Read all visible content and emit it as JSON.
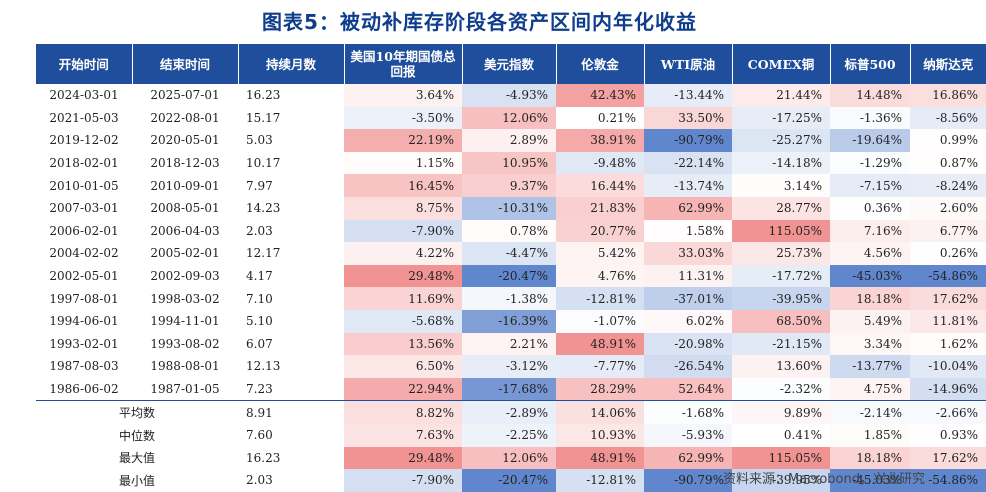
{
  "title": "图表5：被动补库存阶段各资产区间内年化收益",
  "headers": [
    "开始时间",
    "结束时间",
    "持续月数",
    "美国10年期国债总回报",
    "美元指数",
    "伦敦金",
    "WTI原油",
    "COMEX铜",
    "标普500",
    "纳斯达克"
  ],
  "rows": [
    [
      "2024-03-01",
      "2025-07-01",
      "16.23",
      "3.64%",
      "-4.93%",
      "42.43%",
      "-13.44%",
      "21.44%",
      "14.48%",
      "16.86%"
    ],
    [
      "2021-05-03",
      "2022-08-01",
      "15.17",
      "-3.50%",
      "12.06%",
      "0.21%",
      "33.50%",
      "-17.25%",
      "-1.36%",
      "-8.56%"
    ],
    [
      "2019-12-02",
      "2020-05-01",
      "5.03",
      "22.19%",
      "2.89%",
      "38.91%",
      "-90.79%",
      "-25.27%",
      "-19.64%",
      "0.99%"
    ],
    [
      "2018-02-01",
      "2018-12-03",
      "10.17",
      "1.15%",
      "10.95%",
      "-9.48%",
      "-22.14%",
      "-14.18%",
      "-1.29%",
      "0.87%"
    ],
    [
      "2010-01-05",
      "2010-09-01",
      "7.97",
      "16.45%",
      "9.37%",
      "16.44%",
      "-13.74%",
      "3.14%",
      "-7.15%",
      "-8.24%"
    ],
    [
      "2007-03-01",
      "2008-05-01",
      "14.23",
      "8.75%",
      "-10.31%",
      "21.83%",
      "62.99%",
      "28.77%",
      "0.36%",
      "2.60%"
    ],
    [
      "2006-02-01",
      "2006-04-03",
      "2.03",
      "-7.90%",
      "0.78%",
      "20.77%",
      "1.58%",
      "115.05%",
      "7.16%",
      "6.77%"
    ],
    [
      "2004-02-02",
      "2005-02-01",
      "12.17",
      "4.22%",
      "-4.47%",
      "5.42%",
      "33.03%",
      "25.73%",
      "4.56%",
      "0.26%"
    ],
    [
      "2002-05-01",
      "2002-09-03",
      "4.17",
      "29.48%",
      "-20.47%",
      "4.76%",
      "11.31%",
      "-17.72%",
      "-45.03%",
      "-54.86%"
    ],
    [
      "1997-08-01",
      "1998-03-02",
      "7.10",
      "11.69%",
      "-1.38%",
      "-12.81%",
      "-37.01%",
      "-39.95%",
      "18.18%",
      "17.62%"
    ],
    [
      "1994-06-01",
      "1994-11-01",
      "5.10",
      "-5.68%",
      "-16.39%",
      "-1.07%",
      "6.02%",
      "68.50%",
      "5.49%",
      "11.81%"
    ],
    [
      "1993-02-01",
      "1993-08-02",
      "6.07",
      "13.56%",
      "2.21%",
      "48.91%",
      "-20.98%",
      "-21.15%",
      "3.34%",
      "1.62%"
    ],
    [
      "1987-08-03",
      "1988-08-01",
      "12.13",
      "6.50%",
      "-3.12%",
      "-7.77%",
      "-26.54%",
      "13.60%",
      "-13.77%",
      "-10.04%"
    ],
    [
      "1986-06-02",
      "1987-01-05",
      "7.23",
      "22.94%",
      "-17.68%",
      "28.29%",
      "52.64%",
      "-2.32%",
      "4.75%",
      "-14.96%"
    ]
  ],
  "summary": [
    [
      "平均数",
      "8.91",
      "8.82%",
      "-2.89%",
      "14.06%",
      "-1.68%",
      "9.89%",
      "-2.14%",
      "-2.66%"
    ],
    [
      "中位数",
      "7.60",
      "7.63%",
      "-2.25%",
      "10.93%",
      "-5.93%",
      "0.41%",
      "1.85%",
      "0.93%"
    ],
    [
      "最大值",
      "16.23",
      "29.48%",
      "12.06%",
      "48.91%",
      "62.99%",
      "115.05%",
      "18.18%",
      "17.62%"
    ],
    [
      "最小值",
      "2.03",
      "-7.90%",
      "-20.47%",
      "-12.81%",
      "-90.79%",
      "-39.95%",
      "-45.03%",
      "-54.86%"
    ]
  ],
  "source": "资料来源：Macrobond，兴业研究",
  "colors": {
    "header_bg": "#1f4e9c",
    "title": "#0e3d8c",
    "positive": "#f08080",
    "negative": "#4472c4"
  }
}
